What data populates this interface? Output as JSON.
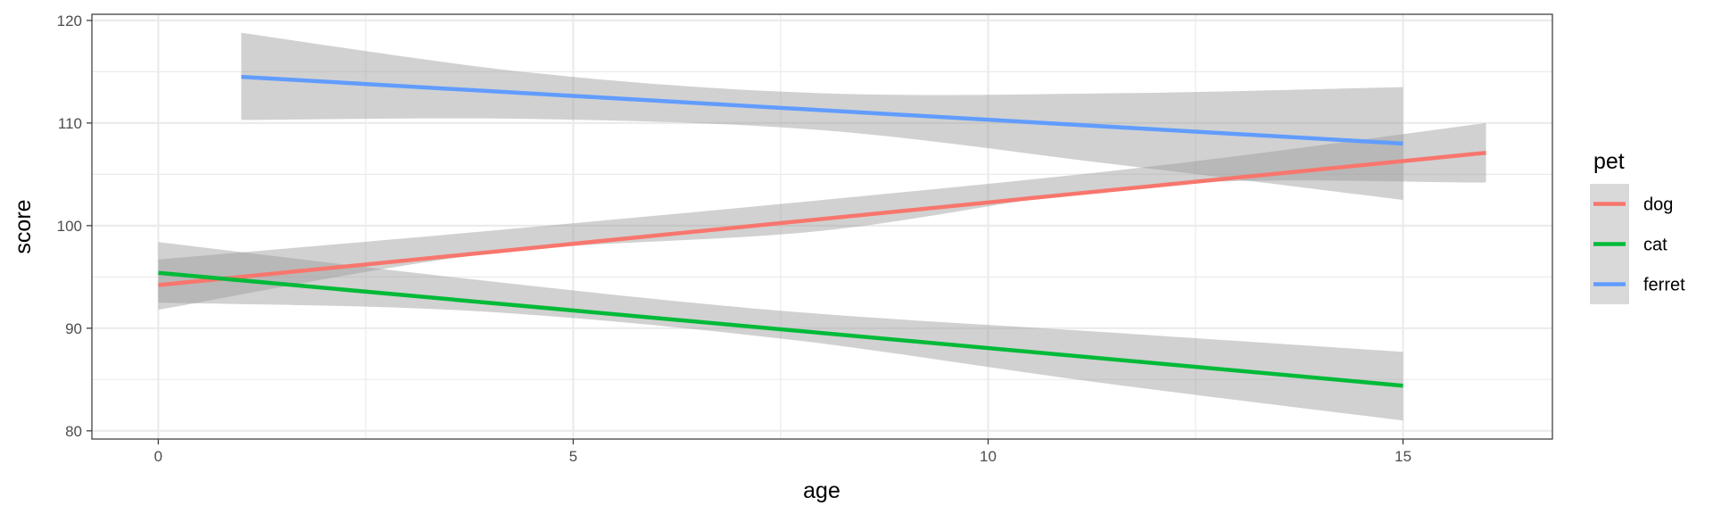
{
  "chart_data": {
    "type": "line",
    "xlabel": "age",
    "ylabel": "score",
    "xlim": [
      -0.8,
      16.8
    ],
    "ylim": [
      79.2,
      120.6
    ],
    "x_ticks": [
      0,
      5,
      10,
      15
    ],
    "x_tick_labels": [
      "0",
      "5",
      "10",
      "15"
    ],
    "y_ticks": [
      80,
      90,
      100,
      110,
      120
    ],
    "y_tick_labels": [
      "80",
      "90",
      "100",
      "110",
      "120"
    ],
    "grid": true,
    "legend": {
      "title": "pet",
      "placement": "right"
    },
    "series": [
      {
        "name": "dog",
        "color": "#F8766D",
        "x": [
          0,
          16
        ],
        "y": [
          94.2,
          107.1
        ],
        "ci_x": [
          0,
          4,
          8,
          12,
          16
        ],
        "ci_upper": [
          96.7,
          99.5,
          102.5,
          105.8,
          110.0
        ],
        "ci_lower": [
          91.8,
          97.3,
          99.5,
          104.0,
          104.2
        ]
      },
      {
        "name": "cat",
        "color": "#00BA38",
        "x": [
          0,
          15
        ],
        "y": [
          95.4,
          84.4
        ],
        "ci_x": [
          0,
          3.75,
          7.5,
          11.25,
          15
        ],
        "ci_upper": [
          98.4,
          94.8,
          91.7,
          89.7,
          87.7
        ],
        "ci_lower": [
          92.5,
          91.7,
          89.0,
          84.8,
          81.0
        ]
      },
      {
        "name": "ferret",
        "color": "#619CFF",
        "x": [
          1,
          15
        ],
        "y": [
          114.5,
          108.0
        ],
        "ci_x": [
          1,
          4.5,
          8,
          11.5,
          15
        ],
        "ci_upper": [
          118.8,
          114.9,
          112.9,
          112.9,
          113.5
        ],
        "ci_lower": [
          110.3,
          110.4,
          109.3,
          106.0,
          102.5
        ]
      }
    ]
  }
}
